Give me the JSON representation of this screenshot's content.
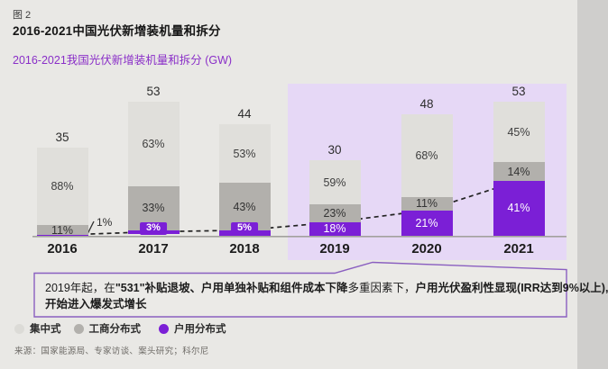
{
  "header": {
    "fig_label": "图 2",
    "title": "2016-2021中国光伏新增装机量和拆分",
    "subtitle": "2016-2021我国光伏新增装机量和拆分 (GW)"
  },
  "chart_data": {
    "type": "bar",
    "stacked": true,
    "unit": "GW",
    "title": "2016-2021我国光伏新增装机量和拆分 (GW)",
    "categories": [
      "2016",
      "2017",
      "2018",
      "2019",
      "2020",
      "2021"
    ],
    "totals": [
      35,
      53,
      44,
      30,
      48,
      53
    ],
    "series": [
      {
        "name": "集中式",
        "color": "#e0dfdb",
        "text_color": "#3d3d3d",
        "values_pct": [
          88,
          63,
          53,
          59,
          68,
          45
        ]
      },
      {
        "name": "工商分布式",
        "color": "#b2b0ac",
        "text_color": "#333333",
        "values_pct": [
          11,
          33,
          43,
          23,
          11,
          14
        ]
      },
      {
        "name": "户用分布式",
        "color": "#7b1fd6",
        "text_color": "#ffffff",
        "values_pct": [
          1,
          3,
          5,
          18,
          21,
          41
        ],
        "label_styles": [
          "leader",
          "badge",
          "badge",
          "inside",
          "inside",
          "inside"
        ]
      }
    ],
    "leader_label": "1%",
    "highlight_years": [
      "2019",
      "2020",
      "2021"
    ],
    "highlight_color": "#e6d8f6",
    "trend_line": {
      "style": "dashed",
      "color": "#222222",
      "follows": "户用分布式 segment tops"
    },
    "legend_position": "bottom-left",
    "grid": false
  },
  "annotation": {
    "line1_parts": [
      {
        "text": "2019年起，在",
        "bold": false
      },
      {
        "text": "\"531\"补贴退坡、户用单独补贴和组件成本下降",
        "bold": true
      },
      {
        "text": "多重因素下，",
        "bold": false
      },
      {
        "text": "户用光伏盈利性显现(IRR达到9%以上),",
        "bold": true
      }
    ],
    "line2": "开始进入爆发式增长"
  },
  "legend": {
    "items": [
      {
        "label": "集中式",
        "color": "#dcdbd7"
      },
      {
        "label": "工商分布式",
        "color": "#b2b0ac"
      },
      {
        "label": "户用分布式",
        "color": "#7b1fd6"
      }
    ]
  },
  "source": "来源：国家能源局、专家访谈、案头研究；科尔尼"
}
